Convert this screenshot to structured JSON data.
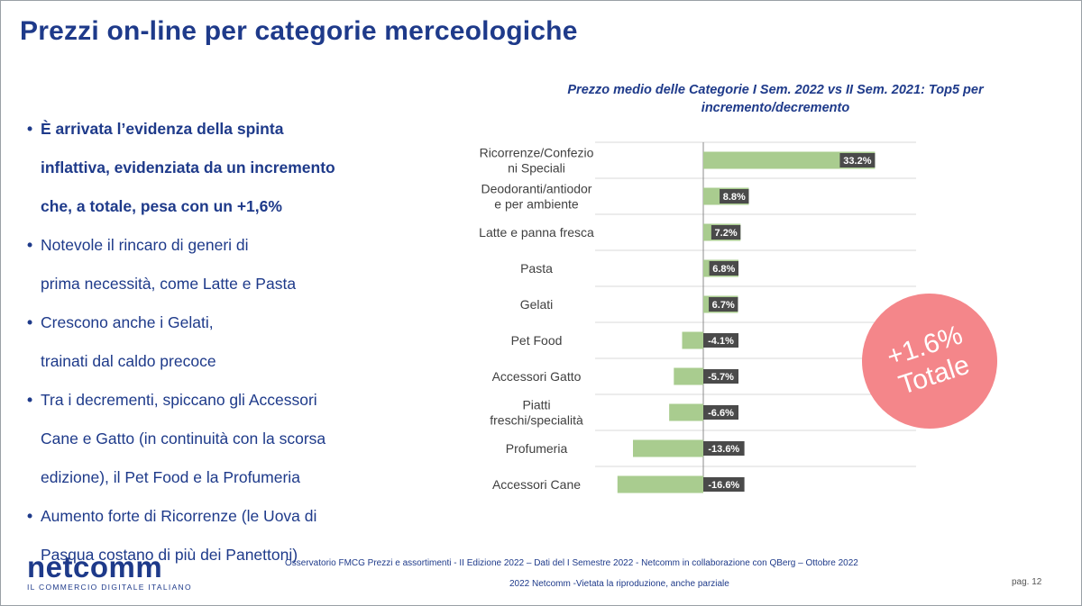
{
  "slide": {
    "title": "Prezzi on-line per categorie merceologiche",
    "bullets": [
      {
        "lines": [
          "È arrivata l’evidenza della spinta",
          "inflattiva, evidenziata da un incremento",
          "che, a totale, pesa con un +1,6%"
        ],
        "bold": true
      },
      {
        "lines": [
          "Notevole il rincaro di generi di",
          "prima necessità, come Latte e Pasta"
        ],
        "bold": false
      },
      {
        "lines": [
          "Crescono anche i Gelati,",
          "trainati dal caldo precoce"
        ],
        "bold": false
      },
      {
        "lines": [
          "Tra i decrementi, spiccano gli Accessori",
          "Cane e Gatto (in continuità con la scorsa",
          "edizione), il Pet Food e la Profumeria"
        ],
        "bold": false
      },
      {
        "lines": [
          "Aumento forte di Ricorrenze (le Uova di",
          "Pasqua costano di più dei Panettoni)"
        ],
        "bold": false
      }
    ],
    "bullet_symbol": "•",
    "badge": {
      "value": "+1.6%",
      "label": "Totale",
      "color": "#f4868a"
    },
    "logo": {
      "wordmark": "netcomm",
      "tagline": "IL COMMERCIO DIGITALE ITALIANO"
    },
    "footer": {
      "source": "Osservatorio FMCG Prezzi e assortimenti - II Edizione 2022 – Dati del I Semestre 2022 - Netcomm in collaborazione con QBerg – Ottobre 2022",
      "copyright": "2022  Netcomm  -Vietata la riproduzione, anche parziale",
      "page": "pag. 12"
    }
  },
  "chart_data": {
    "type": "bar",
    "orientation": "horizontal",
    "title_lines": [
      "Prezzo medio delle Categorie I Sem. 2022 vs II Sem. 2021: Top5 per",
      "incremento/decremento"
    ],
    "categories": [
      [
        "Ricorrenze/Confezio",
        "ni Speciali"
      ],
      [
        "Deodoranti/antiodor",
        "e per ambiente"
      ],
      [
        "Latte e panna fresca"
      ],
      [
        "Pasta"
      ],
      [
        "Gelati"
      ],
      [
        "Pet Food"
      ],
      [
        "Accessori Gatto"
      ],
      [
        "Piatti",
        "freschi/specialità"
      ],
      [
        "Profumeria"
      ],
      [
        "Accessori Cane"
      ]
    ],
    "values": [
      33.2,
      8.8,
      7.2,
      6.8,
      6.7,
      -4.1,
      -5.7,
      -6.6,
      -13.6,
      -16.6
    ],
    "data_labels": [
      "33.2%",
      "8.8%",
      "7.2%",
      "6.8%",
      "6.7%",
      "-4.1%",
      "-5.7%",
      "-6.6%",
      "-13.6%",
      "-16.6%"
    ],
    "xlim": [
      -20,
      34
    ],
    "bar_color": "#a9cc8f",
    "label_bg_color": "#4a4a4a",
    "grid": "horizontal separators"
  }
}
